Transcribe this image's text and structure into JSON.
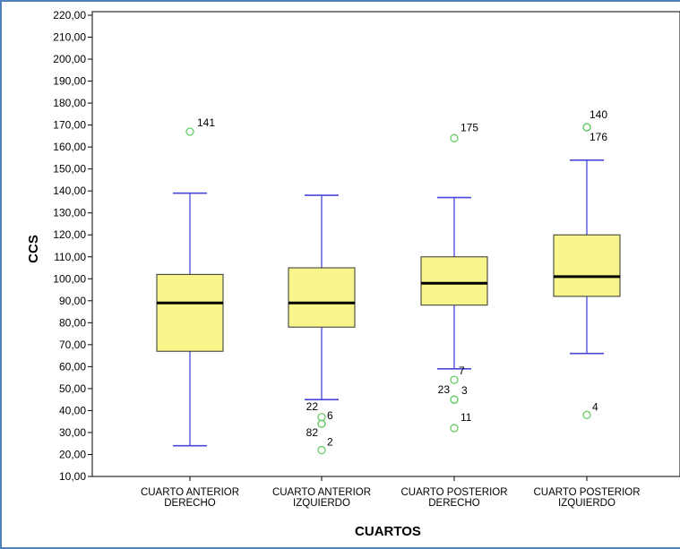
{
  "chart_data": {
    "type": "boxplot",
    "title": "",
    "xlabel": "CUARTOS",
    "ylabel": "CCS",
    "ylim": [
      10,
      220
    ],
    "yticks": [
      "10,00",
      "20,00",
      "30,00",
      "40,00",
      "50,00",
      "60,00",
      "70,00",
      "80,00",
      "90,00",
      "100,00",
      "110,00",
      "120,00",
      "130,00",
      "140,00",
      "150,00",
      "160,00",
      "170,00",
      "180,00",
      "190,00",
      "200,00",
      "210,00",
      "220,00"
    ],
    "grid": false,
    "colors": {
      "box_fill": "#f8f68a",
      "box_stroke": "#333333",
      "median": "#000000",
      "whisker": "#4848d8",
      "outlier": "#66cc66",
      "frame": "#4f81bd"
    },
    "categories": [
      {
        "label_lines": [
          "CUARTO ANTERIOR",
          "DERECHO"
        ],
        "min": 24,
        "q1": 67,
        "median": 89,
        "q3": 102,
        "max": 139,
        "outliers": [
          {
            "value": 167,
            "label": "141"
          }
        ]
      },
      {
        "label_lines": [
          "CUARTO ANTERIOR",
          "IZQUIERDO"
        ],
        "min": 45,
        "q1": 78,
        "median": 89,
        "q3": 105,
        "max": 138,
        "outliers": [
          {
            "value": 37,
            "label": "22"
          },
          {
            "value": 34,
            "label": "6"
          },
          {
            "value": 34,
            "label": "82"
          },
          {
            "value": 22,
            "label": "2"
          }
        ]
      },
      {
        "label_lines": [
          "CUARTO POSTERIOR",
          "DERECHO"
        ],
        "min": 59,
        "q1": 88,
        "median": 98,
        "q3": 110,
        "max": 137,
        "outliers": [
          {
            "value": 164,
            "label": "175"
          },
          {
            "value": 54,
            "label": "7"
          },
          {
            "value": 45,
            "label": "23"
          },
          {
            "value": 45,
            "label": "3"
          },
          {
            "value": 32,
            "label": "11"
          }
        ]
      },
      {
        "label_lines": [
          "CUARTO POSTERIOR",
          "IZQUIERDO"
        ],
        "min": 66,
        "q1": 92,
        "median": 101,
        "q3": 120,
        "max": 154,
        "outliers": [
          {
            "value": 169,
            "label": "140"
          },
          {
            "value": 169,
            "label": "176"
          },
          {
            "value": 38,
            "label": "4"
          }
        ]
      }
    ]
  }
}
